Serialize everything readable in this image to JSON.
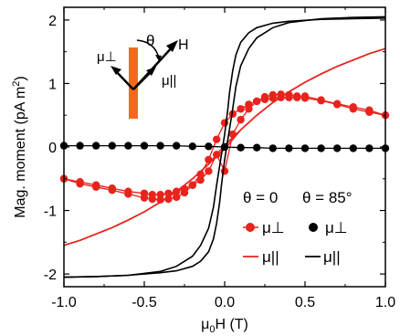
{
  "chart_data": {
    "type": "line",
    "xlabel": "μ0H (T)",
    "ylabel": "Mag. moment (pA m²)",
    "xlim": [
      -1.0,
      1.0
    ],
    "ylim": [
      -2.2,
      2.2
    ],
    "x_ticks": [
      "-1.0",
      "-0.5",
      "0.0",
      "0.5",
      "1.0"
    ],
    "y_ticks": [
      "-2",
      "-1",
      "0",
      "1",
      "2"
    ],
    "grid": false,
    "legend": {
      "placement": "bottom-right",
      "column_headers": [
        "θ = 0",
        "θ = 85°"
      ],
      "entries": [
        {
          "label": "μ⊥",
          "series": "theta0_perp"
        },
        {
          "label": "μ⊥",
          "series": "theta85_perp"
        },
        {
          "label": "μ||",
          "series": "theta0_par"
        },
        {
          "label": "μ||",
          "series": "theta85_par"
        }
      ]
    },
    "inset": {
      "angle_label": "θ",
      "field_label": "H",
      "perp_label": "μ⊥",
      "par_label": "μ||"
    },
    "series": [
      {
        "id": "theta0_perp",
        "color": "#e8231c",
        "style": "markers+line",
        "x": [
          -1.0,
          -0.9,
          -0.8,
          -0.7,
          -0.6,
          -0.5,
          -0.45,
          -0.4,
          -0.35,
          -0.3,
          -0.25,
          -0.2,
          -0.15,
          -0.1,
          -0.05,
          0.0,
          0.05,
          0.1,
          0.15,
          0.2,
          0.25,
          0.3,
          0.35,
          0.4,
          0.45,
          0.5,
          0.6,
          0.7,
          0.8,
          0.9,
          1.0
        ],
        "y": [
          -0.5,
          -0.58,
          -0.63,
          -0.68,
          -0.74,
          -0.8,
          -0.82,
          -0.83,
          -0.82,
          -0.79,
          -0.72,
          -0.6,
          -0.43,
          -0.2,
          0.12,
          0.38,
          0.52,
          0.6,
          0.67,
          0.72,
          0.75,
          0.77,
          0.78,
          0.78,
          0.78,
          0.77,
          0.73,
          0.67,
          0.6,
          0.55,
          0.5
        ],
        "y_return": [
          -0.5,
          -0.55,
          -0.6,
          -0.65,
          -0.7,
          -0.73,
          -0.75,
          -0.75,
          -0.73,
          -0.7,
          -0.66,
          -0.6,
          -0.52,
          -0.38,
          -0.12,
          -0.38,
          0.2,
          0.43,
          0.6,
          0.72,
          0.79,
          0.82,
          0.83,
          0.82,
          0.8,
          0.8,
          0.74,
          0.68,
          0.63,
          0.58,
          0.5
        ]
      },
      {
        "id": "theta0_par",
        "color": "#e8231c",
        "style": "line",
        "x": [
          -1.0,
          -0.9,
          -0.8,
          -0.7,
          -0.6,
          -0.5,
          -0.4,
          -0.3,
          -0.2,
          -0.1,
          0.0,
          0.1,
          0.2,
          0.3,
          0.4,
          0.5,
          0.6,
          0.7,
          0.8,
          0.9,
          1.0
        ],
        "y": [
          -1.55,
          -1.47,
          -1.37,
          -1.27,
          -1.15,
          -1.02,
          -0.87,
          -0.7,
          -0.5,
          -0.27,
          -0.03,
          0.27,
          0.5,
          0.7,
          0.87,
          1.02,
          1.15,
          1.27,
          1.37,
          1.47,
          1.55
        ],
        "y_return": [
          -1.55,
          -1.47,
          -1.37,
          -1.27,
          -1.15,
          -1.02,
          -0.87,
          -0.7,
          -0.5,
          -0.27,
          0.03,
          0.27,
          0.5,
          0.7,
          0.87,
          1.02,
          1.15,
          1.27,
          1.37,
          1.47,
          1.55
        ]
      },
      {
        "id": "theta85_perp",
        "color": "#000000",
        "style": "markers+line",
        "x": [
          -1.0,
          -0.9,
          -0.8,
          -0.7,
          -0.6,
          -0.5,
          -0.4,
          -0.3,
          -0.2,
          -0.1,
          0.0,
          0.1,
          0.2,
          0.3,
          0.4,
          0.5,
          0.6,
          0.7,
          0.8,
          0.9,
          1.0
        ],
        "y": [
          0.02,
          0.02,
          0.02,
          0.02,
          0.02,
          0.02,
          0.02,
          0.02,
          0.01,
          0.01,
          0.0,
          -0.01,
          -0.01,
          -0.02,
          -0.02,
          -0.02,
          -0.02,
          -0.02,
          -0.02,
          -0.02,
          -0.02
        ]
      },
      {
        "id": "theta85_par",
        "color": "#000000",
        "style": "line",
        "x": [
          -1.0,
          -0.8,
          -0.6,
          -0.4,
          -0.3,
          -0.2,
          -0.15,
          -0.1,
          -0.07,
          -0.05,
          -0.03,
          -0.02,
          0.0,
          0.02,
          0.03,
          0.05,
          0.07,
          0.1,
          0.15,
          0.2,
          0.3,
          0.4,
          0.6,
          0.8,
          1.0
        ],
        "y": [
          -2.05,
          -2.04,
          -2.02,
          -1.96,
          -1.88,
          -1.72,
          -1.55,
          -1.28,
          -0.95,
          -0.6,
          -0.28,
          -0.12,
          0.2,
          0.6,
          0.85,
          1.2,
          1.45,
          1.65,
          1.8,
          1.88,
          1.95,
          1.98,
          2.01,
          2.02,
          2.03
        ],
        "y_return": [
          -2.05,
          -2.04,
          -2.02,
          -1.98,
          -1.95,
          -1.88,
          -1.8,
          -1.65,
          -1.45,
          -1.2,
          -0.85,
          -0.6,
          -0.2,
          0.12,
          0.28,
          0.6,
          0.95,
          1.28,
          1.55,
          1.72,
          1.88,
          1.96,
          2.02,
          2.04,
          2.05
        ]
      }
    ]
  }
}
